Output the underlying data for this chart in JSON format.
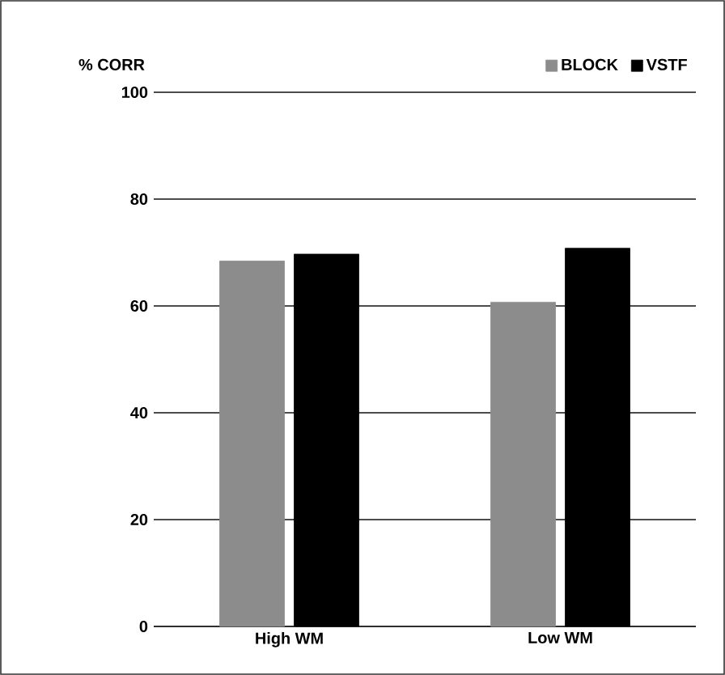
{
  "chart_data": {
    "type": "bar",
    "ylabel": "% CORR",
    "categories": [
      "High WM",
      "Low WM"
    ],
    "series": [
      {
        "name": "BLOCK",
        "color": "#8c8c8c",
        "values": [
          68.4,
          60.7
        ]
      },
      {
        "name": "VSTF",
        "color": "#000000",
        "values": [
          69.7,
          70.8
        ]
      }
    ],
    "ylim": [
      0,
      100
    ],
    "yticks": [
      0,
      20,
      40,
      60,
      80,
      100
    ],
    "grid": "y",
    "legend": "top right"
  }
}
